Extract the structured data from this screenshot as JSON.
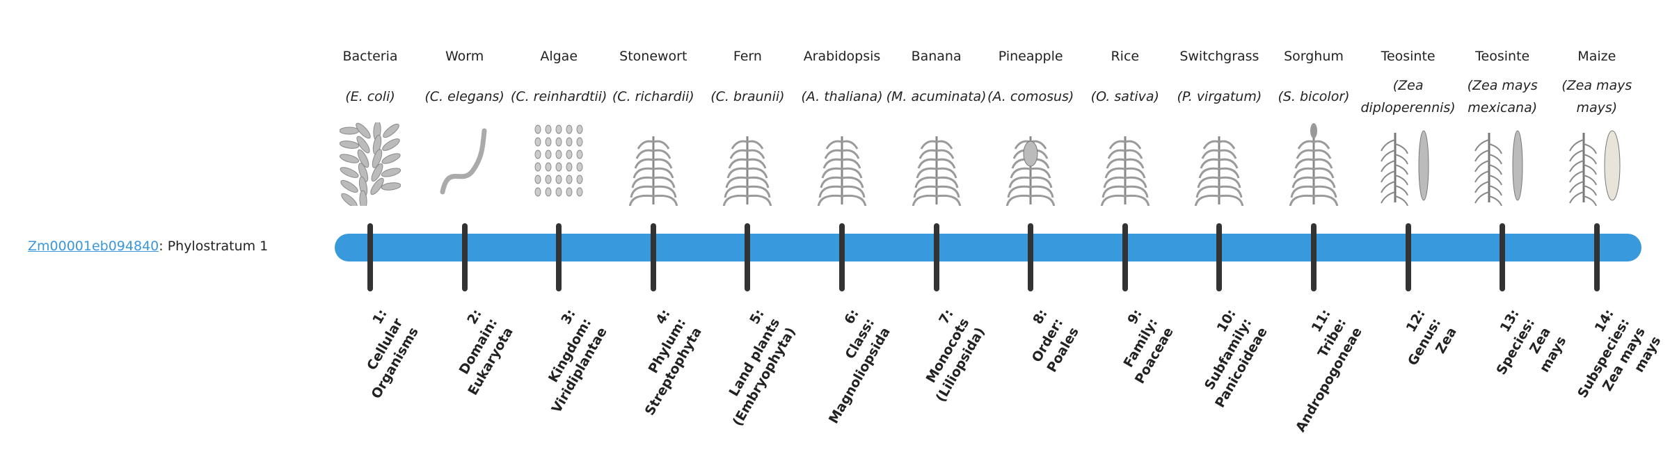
{
  "gene": {
    "id": "Zm00001eb094840",
    "suffix": ": Phylostratum 1"
  },
  "colors": {
    "bar": "#3899dc",
    "tick": "#333333",
    "link": "#3a97db"
  },
  "strata": [
    {
      "common": "Bacteria",
      "latin": "(E. coli)",
      "icon": "bacteria-icon",
      "label": [
        "1:",
        "Cellular",
        "Organisms"
      ]
    },
    {
      "common": "Worm",
      "latin": "(C. elegans)",
      "icon": "worm-icon",
      "label": [
        "2:",
        "Domain:",
        "Eukaryota"
      ]
    },
    {
      "common": "Algae",
      "latin": "(C. reinhardtii)",
      "icon": "algae-icon",
      "label": [
        "3:",
        "Kingdom:",
        "Viridiplantae"
      ]
    },
    {
      "common": "Stonewort",
      "latin": "(C. richardii)",
      "icon": "stonewort-icon",
      "label": [
        "4:",
        "Phylum:",
        "Streptophyta"
      ]
    },
    {
      "common": "Fern",
      "latin": "(C. braunii)",
      "icon": "fern-icon",
      "label": [
        "5:",
        "Land plants",
        "(Embryophyta)"
      ]
    },
    {
      "common": "Arabidopsis",
      "latin": "(A. thaliana)",
      "icon": "arabidopsis-icon",
      "label": [
        "6:",
        "Class:",
        "Magnoliopsida"
      ]
    },
    {
      "common": "Banana",
      "latin": "(M. acuminata)",
      "icon": "banana-icon",
      "label": [
        "7:",
        "Monocots",
        "(Liliopsida)"
      ]
    },
    {
      "common": "Pineapple",
      "latin": "(A. comosus)",
      "icon": "pineapple-icon",
      "label": [
        "8:",
        "Order:",
        "Poales"
      ]
    },
    {
      "common": "Rice",
      "latin": "(O. sativa)",
      "icon": "rice-icon",
      "label": [
        "9:",
        "Family:",
        "Poaceae"
      ]
    },
    {
      "common": "Switchgrass",
      "latin": "(P. virgatum)",
      "icon": "switchgrass-icon",
      "label": [
        "10:",
        "Subfamily:",
        "Panicoideae"
      ]
    },
    {
      "common": "Sorghum",
      "latin": "(S. bicolor)",
      "icon": "sorghum-icon",
      "label": [
        "11:",
        "Tribe:",
        "Andropogoneae"
      ]
    },
    {
      "common": "Teosinte",
      "latin": "(Zea diploperennis)",
      "icon": "teosinte-icon",
      "label": [
        "12:",
        "Genus:",
        "Zea"
      ]
    },
    {
      "common": "Teosinte",
      "latin": "(Zea mays mexicana)",
      "icon": "teosinte-icon",
      "label": [
        "13:",
        "Species:",
        "Zea",
        "mays"
      ]
    },
    {
      "common": "Maize",
      "latin": "(Zea mays mays)",
      "icon": "maize-icon",
      "label": [
        "14:",
        "Subspecies:",
        "Zea mays",
        "mays"
      ]
    }
  ]
}
